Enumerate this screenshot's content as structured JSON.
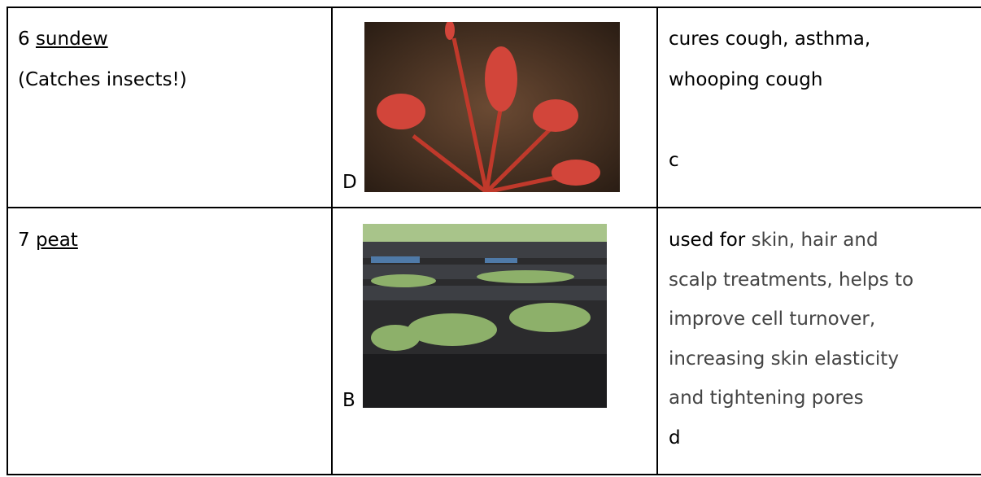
{
  "table": {
    "rows": [
      {
        "number": "6",
        "name": "sundew",
        "note": "(Catches insects!)",
        "image_label": "D",
        "use_lines": [
          "cures cough, asthma,",
          "whooping cough"
        ],
        "answer": "c"
      },
      {
        "number": "7",
        "name": "peat",
        "image_label": "B",
        "use_lead": "used for",
        "use_lines": [
          "skin, hair and",
          "scalp treatments, helps to",
          "improve cell turnover,",
          "increasing skin elasticity",
          "and tightening pores"
        ],
        "answer": "d"
      }
    ]
  }
}
